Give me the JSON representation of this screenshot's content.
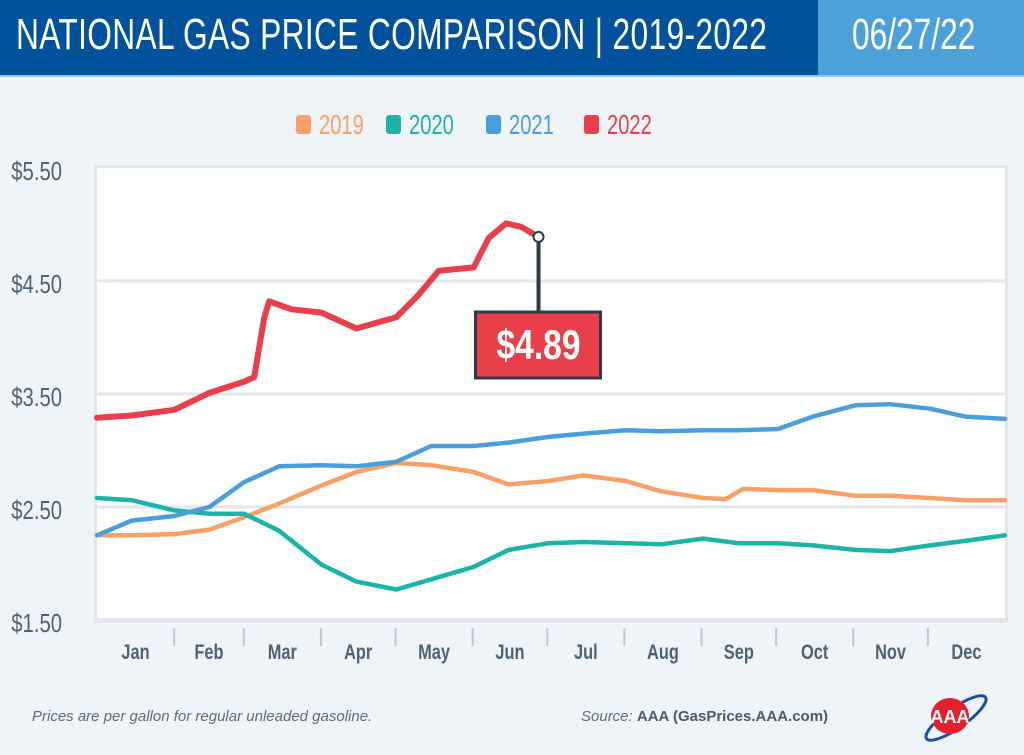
{
  "header": {
    "title": "NATIONAL GAS PRICE COMPARISON | 2019-2022",
    "date": "06/27/22"
  },
  "footer": {
    "note": "Prices are per gallon for regular unleaded gasoline.",
    "source_label": "Source:",
    "source": "AAA (GasPrices.AAA.com)"
  },
  "logo": {
    "text": "AAA"
  },
  "chart_data": {
    "type": "line",
    "title": "",
    "xlabel": "",
    "ylabel": "",
    "ylim": [
      1.5,
      5.5
    ],
    "yticks": [
      "$1.50",
      "$2.50",
      "$3.50",
      "$4.50",
      "$5.50"
    ],
    "ytick_values": [
      1.5,
      2.5,
      3.5,
      4.5,
      5.5
    ],
    "categories": [
      "Jan",
      "Feb",
      "Mar",
      "Apr",
      "May",
      "Jun",
      "Jul",
      "Aug",
      "Sep",
      "Oct",
      "Nov",
      "Dec"
    ],
    "grid": true,
    "legend_placement": "top-center",
    "series": [
      {
        "name": "2019",
        "color": "#f9a066",
        "points": [
          [
            "01-01",
            2.25
          ],
          [
            "01-15",
            2.25
          ],
          [
            "02-01",
            2.26
          ],
          [
            "02-15",
            2.3
          ],
          [
            "03-01",
            2.41
          ],
          [
            "03-15",
            2.53
          ],
          [
            "04-01",
            2.69
          ],
          [
            "04-15",
            2.81
          ],
          [
            "05-01",
            2.89
          ],
          [
            "05-15",
            2.87
          ],
          [
            "06-01",
            2.81
          ],
          [
            "06-15",
            2.7
          ],
          [
            "07-01",
            2.73
          ],
          [
            "07-15",
            2.78
          ],
          [
            "08-01",
            2.73
          ],
          [
            "08-15",
            2.64
          ],
          [
            "09-01",
            2.58
          ],
          [
            "09-10",
            2.57
          ],
          [
            "09-17",
            2.66
          ],
          [
            "10-01",
            2.65
          ],
          [
            "10-15",
            2.65
          ],
          [
            "11-01",
            2.6
          ],
          [
            "11-15",
            2.6
          ],
          [
            "12-01",
            2.58
          ],
          [
            "12-15",
            2.56
          ],
          [
            "12-31",
            2.56
          ]
        ]
      },
      {
        "name": "2020",
        "color": "#1ab5a8",
        "points": [
          [
            "01-01",
            2.58
          ],
          [
            "01-15",
            2.56
          ],
          [
            "02-01",
            2.47
          ],
          [
            "02-15",
            2.44
          ],
          [
            "03-01",
            2.44
          ],
          [
            "03-15",
            2.29
          ],
          [
            "04-01",
            1.99
          ],
          [
            "04-15",
            1.84
          ],
          [
            "05-01",
            1.77
          ],
          [
            "05-15",
            1.86
          ],
          [
            "06-01",
            1.97
          ],
          [
            "06-15",
            2.12
          ],
          [
            "07-01",
            2.18
          ],
          [
            "07-15",
            2.19
          ],
          [
            "08-01",
            2.18
          ],
          [
            "08-15",
            2.17
          ],
          [
            "09-01",
            2.22
          ],
          [
            "09-15",
            2.18
          ],
          [
            "10-01",
            2.18
          ],
          [
            "10-15",
            2.16
          ],
          [
            "11-01",
            2.12
          ],
          [
            "11-15",
            2.11
          ],
          [
            "12-01",
            2.16
          ],
          [
            "12-15",
            2.2
          ],
          [
            "12-31",
            2.25
          ]
        ]
      },
      {
        "name": "2021",
        "color": "#4a9fdb",
        "points": [
          [
            "01-01",
            2.25
          ],
          [
            "01-15",
            2.38
          ],
          [
            "02-01",
            2.42
          ],
          [
            "02-15",
            2.5
          ],
          [
            "03-01",
            2.72
          ],
          [
            "03-15",
            2.86
          ],
          [
            "04-01",
            2.87
          ],
          [
            "04-15",
            2.86
          ],
          [
            "05-01",
            2.9
          ],
          [
            "05-15",
            3.04
          ],
          [
            "06-01",
            3.04
          ],
          [
            "06-15",
            3.07
          ],
          [
            "07-01",
            3.12
          ],
          [
            "07-15",
            3.15
          ],
          [
            "08-01",
            3.18
          ],
          [
            "08-15",
            3.17
          ],
          [
            "09-01",
            3.18
          ],
          [
            "09-15",
            3.18
          ],
          [
            "10-01",
            3.19
          ],
          [
            "10-15",
            3.3
          ],
          [
            "11-01",
            3.4
          ],
          [
            "11-15",
            3.41
          ],
          [
            "12-01",
            3.37
          ],
          [
            "12-15",
            3.3
          ],
          [
            "12-31",
            3.28
          ]
        ]
      },
      {
        "name": "2022",
        "color": "#e83f4b",
        "points": [
          [
            "01-01",
            3.29
          ],
          [
            "01-15",
            3.31
          ],
          [
            "02-01",
            3.36
          ],
          [
            "02-15",
            3.51
          ],
          [
            "03-01",
            3.61
          ],
          [
            "03-05",
            3.65
          ],
          [
            "03-09",
            4.17
          ],
          [
            "03-11",
            4.32
          ],
          [
            "03-20",
            4.25
          ],
          [
            "04-01",
            4.22
          ],
          [
            "04-15",
            4.08
          ],
          [
            "05-01",
            4.18
          ],
          [
            "05-10",
            4.38
          ],
          [
            "05-18",
            4.59
          ],
          [
            "06-01",
            4.62
          ],
          [
            "06-07",
            4.88
          ],
          [
            "06-14",
            5.01
          ],
          [
            "06-20",
            4.98
          ],
          [
            "06-27",
            4.89
          ]
        ]
      }
    ],
    "annotations": [
      {
        "x": "06-27",
        "series": "2022",
        "label": "$4.89"
      }
    ]
  }
}
